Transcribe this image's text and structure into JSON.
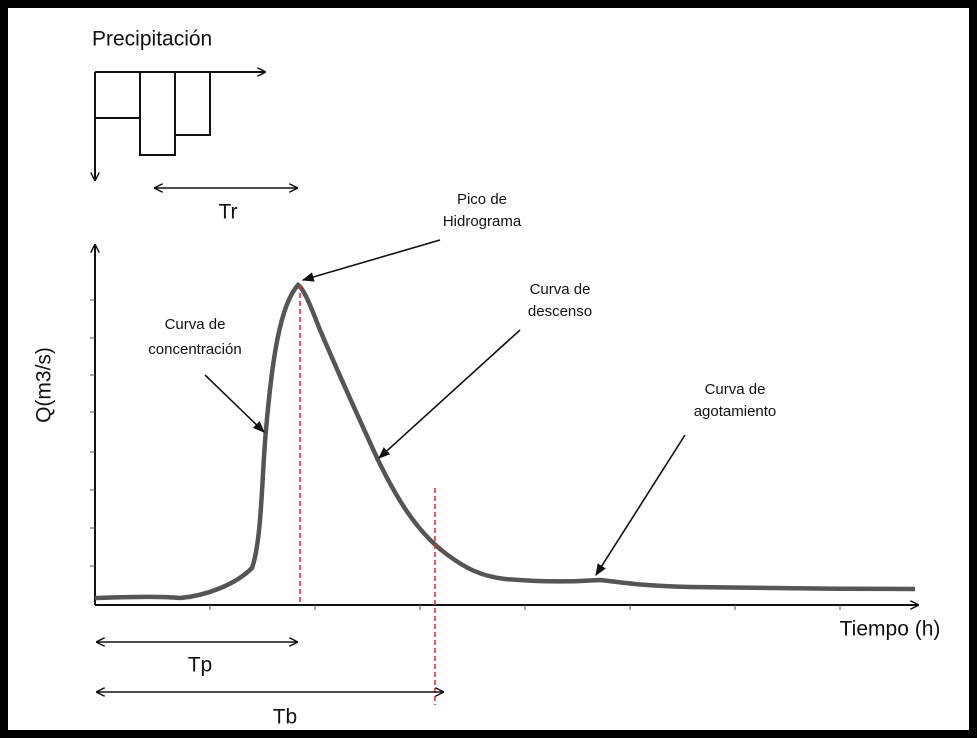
{
  "precipitation": {
    "title": "Precipitación",
    "tr": "Tr"
  },
  "annotations": {
    "peak": [
      "Pico de",
      "Hidrograma"
    ],
    "rising": [
      "Curva de",
      "concentración"
    ],
    "falling": [
      "Curva de",
      "descenso"
    ],
    "recession": [
      "Curva de",
      "agotamiento"
    ]
  },
  "axes": {
    "y": "Q(m3/s)",
    "x": "Tiempo (h)"
  },
  "intervals": {
    "tp": "Tp",
    "tb": "Tb"
  }
}
